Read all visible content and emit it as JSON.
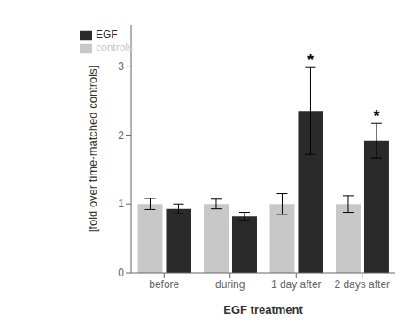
{
  "chart_data": {
    "type": "bar",
    "xlabel": "EGF treatment",
    "ylabel": "[fold over time-matched controls]",
    "categories": [
      "before",
      "during",
      "1 day after",
      "2 days after"
    ],
    "series": [
      {
        "name": "controls",
        "color": "#c8c8c8",
        "values": [
          1.0,
          1.0,
          1.0,
          1.0
        ],
        "errors": [
          0.08,
          0.07,
          0.15,
          0.12
        ]
      },
      {
        "name": "EGF",
        "color": "#2a2a2a",
        "values": [
          0.93,
          0.82,
          2.35,
          1.92
        ],
        "errors": [
          0.07,
          0.06,
          0.63,
          0.25
        ]
      }
    ],
    "annotations": [
      {
        "text": "*",
        "category": "1 day after",
        "series": "EGF"
      },
      {
        "text": "*",
        "category": "2 days after",
        "series": "EGF"
      }
    ],
    "ylim": [
      0,
      3.6
    ],
    "yticks": [
      0,
      1,
      2,
      3
    ],
    "grid": false,
    "legend": "upper left"
  }
}
